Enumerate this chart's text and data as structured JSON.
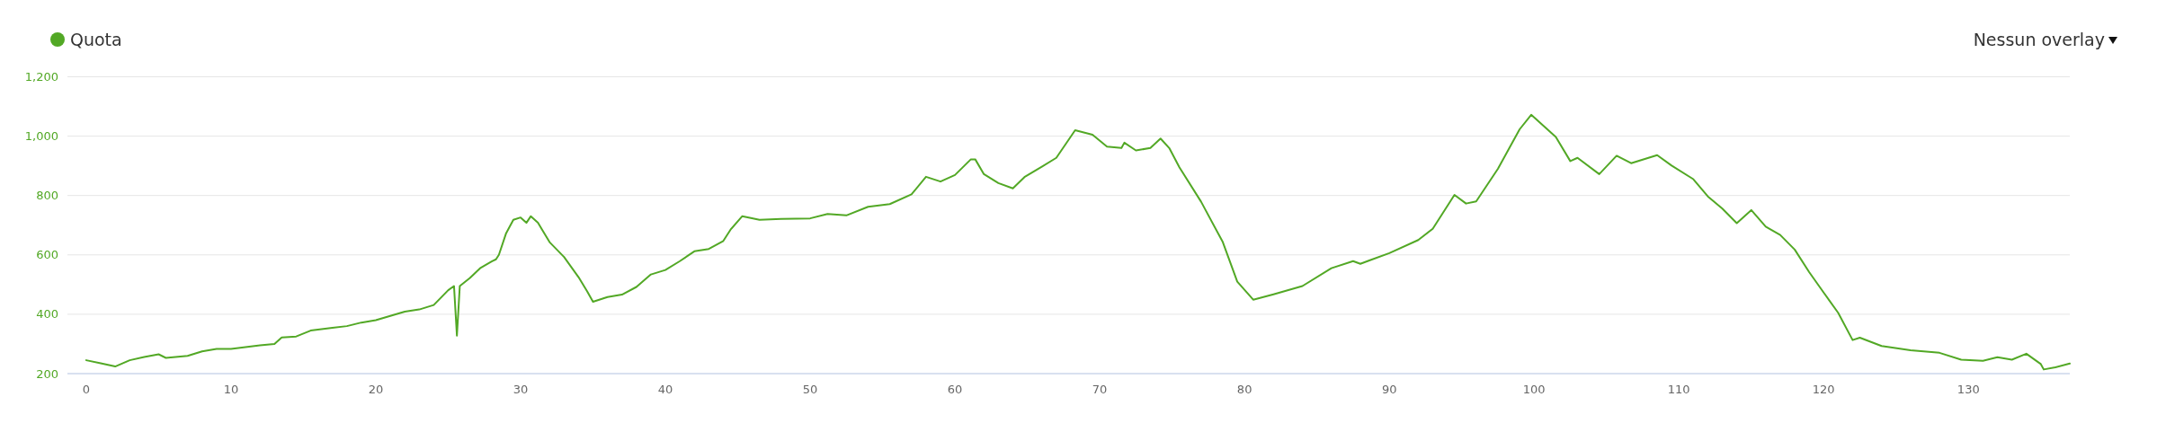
{
  "chart_data": {
    "type": "line",
    "x": [
      0,
      1,
      2,
      3,
      4,
      5,
      5.5,
      7,
      8,
      9,
      10,
      12,
      13,
      13.5,
      14.5,
      15.5,
      17,
      18,
      19,
      20,
      22,
      23,
      24,
      25,
      25.4,
      25.6,
      25.8,
      26.5,
      27.2,
      28,
      28.3,
      28.5,
      29,
      29.5,
      30,
      30.4,
      30.7,
      31.2,
      32,
      33,
      34,
      34.6,
      35,
      36,
      37,
      38,
      39,
      40,
      41,
      42,
      43,
      44,
      44.5,
      45.3,
      46.5,
      48,
      50,
      51.2,
      52.5,
      54,
      55.5,
      57,
      58,
      59,
      60,
      61.1,
      61.4,
      62,
      63,
      64,
      64.8,
      66,
      67,
      68.3,
      69.5,
      70.5,
      71.5,
      71.7,
      72.5,
      73.5,
      74.2,
      74.8,
      75.5,
      77,
      78.5,
      79.5,
      80.6,
      82,
      84,
      86,
      87.5,
      88,
      90,
      92,
      93,
      94.5,
      95.3,
      96,
      97.5,
      99,
      99.8,
      101.5,
      102.5,
      103,
      104.5,
      105.7,
      106.7,
      108.5,
      109.5,
      111,
      112,
      113,
      114,
      115,
      116,
      117,
      118,
      119,
      120,
      121,
      122,
      122.5,
      124,
      126,
      128,
      129.5,
      131,
      132,
      133,
      134,
      135,
      135.2,
      136,
      137
    ],
    "series": [
      {
        "name": "Quota",
        "color": "#52a825",
        "values": [
          245,
          235,
          224,
          245,
          256,
          265,
          253,
          260,
          275,
          283,
          283,
          295,
          300,
          322,
          325,
          345,
          354,
          360,
          372,
          380,
          409,
          416,
          431,
          481,
          495,
          328,
          495,
          522,
          555,
          578,
          585,
          600,
          673,
          718,
          726,
          708,
          730,
          708,
          643,
          593,
          525,
          477,
          442,
          458,
          466,
          492,
          534,
          549,
          579,
          612,
          620,
          647,
          685,
          730,
          718,
          721,
          723,
          738,
          733,
          762,
          771,
          804,
          863,
          847,
          869,
          922,
          922,
          872,
          842,
          824,
          862,
          897,
          927,
          1020,
          1005,
          965,
          960,
          978,
          952,
          960,
          992,
          960,
          895,
          779,
          643,
          510,
          449,
          467,
          495,
          555,
          579,
          570,
          606,
          650,
          688,
          802,
          773,
          780,
          890,
          1023,
          1072,
          997,
          916,
          927,
          872,
          934,
          909,
          936,
          901,
          855,
          797,
          756,
          707,
          751,
          695,
          667,
          618,
          542,
          473,
          405,
          313,
          321,
          293,
          279,
          270,
          247,
          243,
          255,
          247,
          267,
          232,
          214,
          221,
          234
        ]
      }
    ],
    "xlim": [
      -1.3,
      137
    ],
    "ylim": [
      200,
      1200
    ],
    "xticks": [
      0,
      10,
      20,
      30,
      40,
      50,
      60,
      70,
      80,
      90,
      100,
      110,
      120,
      130
    ],
    "yticks": [
      200,
      400,
      600,
      800,
      {
        "value": 1000,
        "label": "1,000"
      },
      {
        "value": 1200,
        "label": "1,200"
      }
    ],
    "grid": "y",
    "legend": "top left",
    "marker": "none",
    "line_style": "solid",
    "annotations": [
      "Nessun overlay"
    ]
  }
}
